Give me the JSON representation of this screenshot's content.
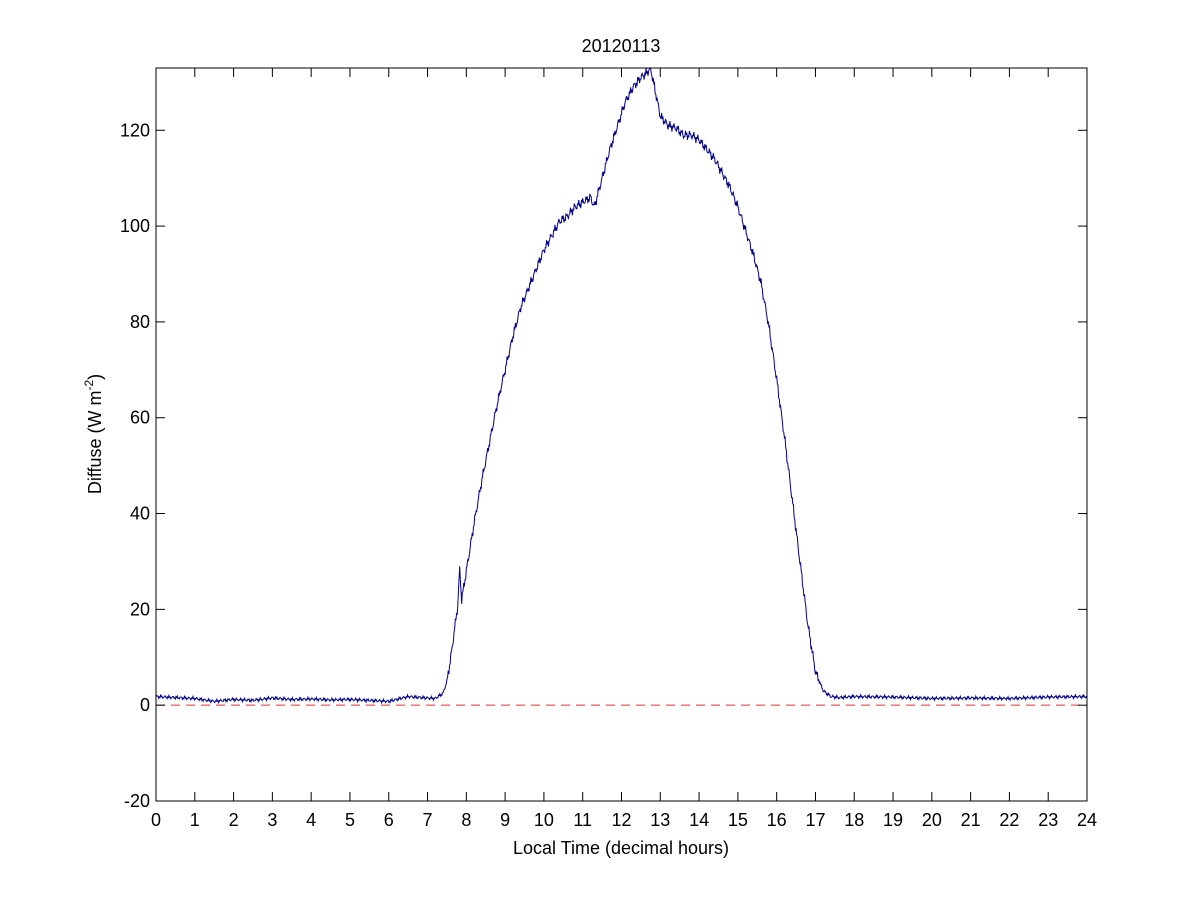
{
  "chart_data": {
    "type": "line",
    "title": "20120113",
    "xlabel": "Local Time (decimal hours)",
    "ylabel": "Diffuse (W m",
    "ylabel_sup": "-2",
    "ylabel_close": ")",
    "xlim": [
      0,
      24
    ],
    "ylim": [
      -20,
      133
    ],
    "xticks": [
      0,
      1,
      2,
      3,
      4,
      5,
      6,
      7,
      8,
      9,
      10,
      11,
      12,
      13,
      14,
      15,
      16,
      17,
      18,
      19,
      20,
      21,
      22,
      23,
      24
    ],
    "yticks": [
      -20,
      0,
      20,
      40,
      60,
      80,
      100,
      120
    ],
    "grid": false,
    "reference_line": {
      "y": 0,
      "color": "#e03030",
      "style": "dashed"
    },
    "series": [
      {
        "color": "#00008b",
        "points": [
          [
            0.0,
            1.8
          ],
          [
            0.5,
            1.6
          ],
          [
            1.0,
            1.4
          ],
          [
            1.5,
            0.8
          ],
          [
            2.0,
            1.2
          ],
          [
            2.5,
            1.0
          ],
          [
            3.0,
            1.5
          ],
          [
            3.5,
            1.2
          ],
          [
            4.0,
            1.3
          ],
          [
            4.5,
            1.1
          ],
          [
            5.0,
            1.2
          ],
          [
            5.5,
            1.0
          ],
          [
            6.0,
            0.8
          ],
          [
            6.5,
            1.8
          ],
          [
            7.0,
            1.5
          ],
          [
            7.2,
            1.4
          ],
          [
            7.4,
            2.5
          ],
          [
            7.5,
            5
          ],
          [
            7.6,
            10
          ],
          [
            7.7,
            16
          ],
          [
            7.78,
            21
          ],
          [
            7.83,
            28.5
          ],
          [
            7.88,
            22
          ],
          [
            8.0,
            28
          ],
          [
            8.2,
            38
          ],
          [
            8.4,
            47
          ],
          [
            8.6,
            55
          ],
          [
            8.8,
            63
          ],
          [
            9.0,
            70
          ],
          [
            9.2,
            77
          ],
          [
            9.4,
            83
          ],
          [
            9.6,
            87
          ],
          [
            9.8,
            91
          ],
          [
            10.0,
            95
          ],
          [
            10.2,
            98
          ],
          [
            10.4,
            101
          ],
          [
            10.6,
            102
          ],
          [
            10.8,
            104
          ],
          [
            11.0,
            105
          ],
          [
            11.2,
            106
          ],
          [
            11.3,
            104
          ],
          [
            11.5,
            110
          ],
          [
            11.7,
            116
          ],
          [
            11.9,
            121
          ],
          [
            12.1,
            126
          ],
          [
            12.3,
            129
          ],
          [
            12.5,
            131
          ],
          [
            12.65,
            132
          ],
          [
            12.75,
            133
          ],
          [
            12.85,
            129
          ],
          [
            13.0,
            123
          ],
          [
            13.2,
            121
          ],
          [
            13.4,
            120.5
          ],
          [
            13.6,
            119
          ],
          [
            13.8,
            119
          ],
          [
            14.0,
            118
          ],
          [
            14.2,
            116
          ],
          [
            14.4,
            114
          ],
          [
            14.6,
            111
          ],
          [
            14.8,
            108
          ],
          [
            15.0,
            104
          ],
          [
            15.2,
            99
          ],
          [
            15.4,
            94
          ],
          [
            15.6,
            88
          ],
          [
            15.8,
            79
          ],
          [
            16.0,
            68
          ],
          [
            16.2,
            56
          ],
          [
            16.4,
            43
          ],
          [
            16.6,
            30
          ],
          [
            16.8,
            17
          ],
          [
            17.0,
            7
          ],
          [
            17.2,
            3
          ],
          [
            17.4,
            1.8
          ],
          [
            17.6,
            1.6
          ],
          [
            18.0,
            1.8
          ],
          [
            19.0,
            1.7
          ],
          [
            20.0,
            1.4
          ],
          [
            21.0,
            1.5
          ],
          [
            22.0,
            1.4
          ],
          [
            23.0,
            1.7
          ],
          [
            24.0,
            1.8
          ]
        ]
      }
    ]
  }
}
